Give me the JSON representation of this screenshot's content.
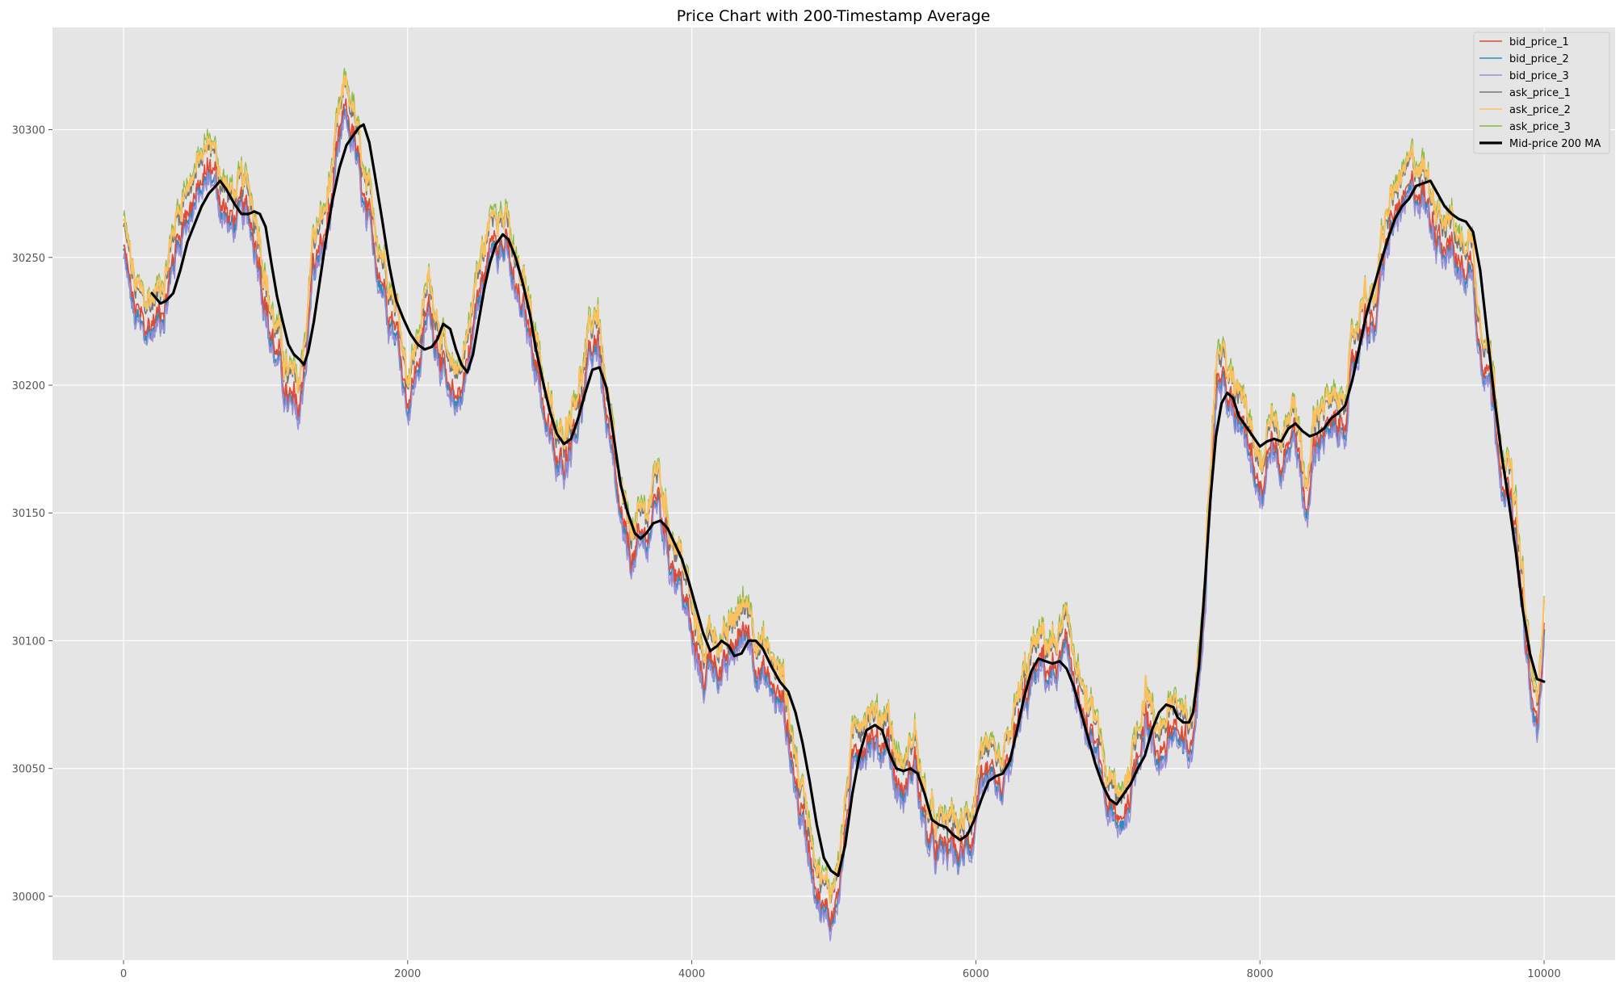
{
  "chart_data": {
    "type": "line",
    "title": "Price Chart with 200-Timestamp Average",
    "xlabel": "",
    "ylabel": "",
    "xlim": [
      -500,
      10500
    ],
    "ylim": [
      29975,
      30340
    ],
    "x_ticks": [
      0,
      2000,
      4000,
      6000,
      8000,
      10000
    ],
    "y_ticks": [
      30000,
      30050,
      30100,
      30150,
      30200,
      30250,
      30300
    ],
    "grid": true,
    "legend_position": "top-right",
    "background": "#e5e5e5",
    "price_path": [
      [
        0,
        30258
      ],
      [
        80,
        30232
      ],
      [
        150,
        30226
      ],
      [
        230,
        30230
      ],
      [
        300,
        30240
      ],
      [
        380,
        30262
      ],
      [
        450,
        30275
      ],
      [
        530,
        30280
      ],
      [
        620,
        30290
      ],
      [
        680,
        30278
      ],
      [
        750,
        30268
      ],
      [
        840,
        30272
      ],
      [
        900,
        30268
      ],
      [
        960,
        30255
      ],
      [
        1030,
        30226
      ],
      [
        1100,
        30212
      ],
      [
        1150,
        30200
      ],
      [
        1230,
        30192
      ],
      [
        1280,
        30215
      ],
      [
        1330,
        30250
      ],
      [
        1420,
        30262
      ],
      [
        1500,
        30290
      ],
      [
        1560,
        30310
      ],
      [
        1620,
        30302
      ],
      [
        1700,
        30270
      ],
      [
        1780,
        30255
      ],
      [
        1850,
        30242
      ],
      [
        1920,
        30228
      ],
      [
        2000,
        30200
      ],
      [
        2060,
        30210
      ],
      [
        2150,
        30235
      ],
      [
        2230,
        30220
      ],
      [
        2300,
        30195
      ],
      [
        2360,
        30200
      ],
      [
        2420,
        30215
      ],
      [
        2480,
        30235
      ],
      [
        2550,
        30250
      ],
      [
        2620,
        30268
      ],
      [
        2700,
        30258
      ],
      [
        2750,
        30242
      ],
      [
        2830,
        30230
      ],
      [
        2900,
        30218
      ],
      [
        2950,
        30200
      ],
      [
        3000,
        30185
      ],
      [
        3060,
        30170
      ],
      [
        3110,
        30178
      ],
      [
        3160,
        30190
      ],
      [
        3230,
        30200
      ],
      [
        3300,
        30218
      ],
      [
        3340,
        30225
      ],
      [
        3400,
        30190
      ],
      [
        3460,
        30165
      ],
      [
        3530,
        30140
      ],
      [
        3600,
        30138
      ],
      [
        3680,
        30145
      ],
      [
        3760,
        30162
      ],
      [
        3840,
        30140
      ],
      [
        3900,
        30132
      ],
      [
        3960,
        30120
      ],
      [
        4020,
        30100
      ],
      [
        4080,
        30090
      ],
      [
        4140,
        30100
      ],
      [
        4230,
        30092
      ],
      [
        4320,
        30105
      ],
      [
        4400,
        30110
      ],
      [
        4460,
        30098
      ],
      [
        4520,
        30090
      ],
      [
        4580,
        30085
      ],
      [
        4650,
        30078
      ],
      [
        4700,
        30060
      ],
      [
        4760,
        30040
      ],
      [
        4830,
        30025
      ],
      [
        4900,
        30005
      ],
      [
        4960,
        29995
      ],
      [
        5000,
        30000
      ],
      [
        5060,
        30020
      ],
      [
        5120,
        30050
      ],
      [
        5180,
        30065
      ],
      [
        5250,
        30070
      ],
      [
        5320,
        30062
      ],
      [
        5380,
        30070
      ],
      [
        5430,
        30050
      ],
      [
        5500,
        30045
      ],
      [
        5570,
        30060
      ],
      [
        5630,
        30035
      ],
      [
        5680,
        30025
      ],
      [
        5750,
        30020
      ],
      [
        5830,
        30025
      ],
      [
        5900,
        30020
      ],
      [
        5970,
        30028
      ],
      [
        6040,
        30055
      ],
      [
        6100,
        30045
      ],
      [
        6180,
        30040
      ],
      [
        6250,
        30060
      ],
      [
        6320,
        30075
      ],
      [
        6400,
        30090
      ],
      [
        6470,
        30095
      ],
      [
        6550,
        30092
      ],
      [
        6620,
        30100
      ],
      [
        6700,
        30090
      ],
      [
        6770,
        30070
      ],
      [
        6850,
        30060
      ],
      [
        6920,
        30042
      ],
      [
        7000,
        30030
      ],
      [
        7080,
        30045
      ],
      [
        7140,
        30060
      ],
      [
        7200,
        30080
      ],
      [
        7260,
        30060
      ],
      [
        7340,
        30065
      ],
      [
        7400,
        30072
      ],
      [
        7460,
        30060
      ],
      [
        7520,
        30062
      ],
      [
        7580,
        30095
      ],
      [
        7640,
        30160
      ],
      [
        7700,
        30210
      ],
      [
        7760,
        30205
      ],
      [
        7820,
        30190
      ],
      [
        7880,
        30195
      ],
      [
        7950,
        30180
      ],
      [
        8020,
        30165
      ],
      [
        8080,
        30185
      ],
      [
        8150,
        30170
      ],
      [
        8220,
        30190
      ],
      [
        8290,
        30175
      ],
      [
        8330,
        30150
      ],
      [
        8380,
        30180
      ],
      [
        8440,
        30190
      ],
      [
        8500,
        30185
      ],
      [
        8560,
        30185
      ],
      [
        8620,
        30200
      ],
      [
        8680,
        30215
      ],
      [
        8740,
        30235
      ],
      [
        8800,
        30225
      ],
      [
        8850,
        30245
      ],
      [
        8900,
        30262
      ],
      [
        8960,
        30272
      ],
      [
        9020,
        30275
      ],
      [
        9080,
        30280
      ],
      [
        9140,
        30282
      ],
      [
        9200,
        30270
      ],
      [
        9250,
        30268
      ],
      [
        9300,
        30262
      ],
      [
        9350,
        30260
      ],
      [
        9400,
        30250
      ],
      [
        9450,
        30252
      ],
      [
        9500,
        30250
      ],
      [
        9540,
        30225
      ],
      [
        9600,
        30215
      ],
      [
        9650,
        30195
      ],
      [
        9700,
        30175
      ],
      [
        9760,
        30160
      ],
      [
        9800,
        30145
      ],
      [
        9840,
        30120
      ],
      [
        9880,
        30100
      ],
      [
        9920,
        30075
      ],
      [
        9960,
        30072
      ],
      [
        10000,
        30108
      ]
    ],
    "ma_path": [
      [
        200,
        30236
      ],
      [
        260,
        30232
      ],
      [
        300,
        30233
      ],
      [
        350,
        30236
      ],
      [
        400,
        30245
      ],
      [
        450,
        30256
      ],
      [
        500,
        30263
      ],
      [
        550,
        30270
      ],
      [
        600,
        30275
      ],
      [
        650,
        30278
      ],
      [
        680,
        30280
      ],
      [
        720,
        30277
      ],
      [
        780,
        30271
      ],
      [
        830,
        30267
      ],
      [
        880,
        30267
      ],
      [
        920,
        30268
      ],
      [
        960,
        30267
      ],
      [
        1000,
        30262
      ],
      [
        1040,
        30248
      ],
      [
        1080,
        30235
      ],
      [
        1120,
        30225
      ],
      [
        1160,
        30216
      ],
      [
        1200,
        30212
      ],
      [
        1240,
        30210
      ],
      [
        1270,
        30208
      ],
      [
        1300,
        30213
      ],
      [
        1340,
        30225
      ],
      [
        1380,
        30240
      ],
      [
        1420,
        30255
      ],
      [
        1470,
        30272
      ],
      [
        1520,
        30285
      ],
      [
        1570,
        30294
      ],
      [
        1620,
        30298
      ],
      [
        1660,
        30301
      ],
      [
        1690,
        30302
      ],
      [
        1730,
        30295
      ],
      [
        1770,
        30282
      ],
      [
        1820,
        30265
      ],
      [
        1870,
        30247
      ],
      [
        1920,
        30233
      ],
      [
        1970,
        30226
      ],
      [
        2020,
        30220
      ],
      [
        2070,
        30216
      ],
      [
        2120,
        30214
      ],
      [
        2170,
        30215
      ],
      [
        2210,
        30218
      ],
      [
        2250,
        30224
      ],
      [
        2300,
        30222
      ],
      [
        2340,
        30214
      ],
      [
        2380,
        30208
      ],
      [
        2420,
        30205
      ],
      [
        2460,
        30212
      ],
      [
        2500,
        30225
      ],
      [
        2540,
        30238
      ],
      [
        2580,
        30248
      ],
      [
        2620,
        30255
      ],
      [
        2670,
        30259
      ],
      [
        2710,
        30257
      ],
      [
        2760,
        30250
      ],
      [
        2810,
        30240
      ],
      [
        2860,
        30228
      ],
      [
        2900,
        30215
      ],
      [
        2950,
        30202
      ],
      [
        3000,
        30190
      ],
      [
        3050,
        30181
      ],
      [
        3100,
        30177
      ],
      [
        3150,
        30179
      ],
      [
        3200,
        30187
      ],
      [
        3250,
        30197
      ],
      [
        3300,
        30206
      ],
      [
        3350,
        30207
      ],
      [
        3400,
        30199
      ],
      [
        3450,
        30180
      ],
      [
        3500,
        30161
      ],
      [
        3550,
        30150
      ],
      [
        3600,
        30142
      ],
      [
        3640,
        30140
      ],
      [
        3680,
        30142
      ],
      [
        3730,
        30146
      ],
      [
        3780,
        30147
      ],
      [
        3830,
        30144
      ],
      [
        3880,
        30138
      ],
      [
        3930,
        30132
      ],
      [
        3980,
        30123
      ],
      [
        4030,
        30113
      ],
      [
        4080,
        30103
      ],
      [
        4130,
        30096
      ],
      [
        4180,
        30098
      ],
      [
        4210,
        30100
      ],
      [
        4260,
        30098
      ],
      [
        4300,
        30094
      ],
      [
        4350,
        30095
      ],
      [
        4400,
        30100
      ],
      [
        4450,
        30100
      ],
      [
        4500,
        30097
      ],
      [
        4560,
        30090
      ],
      [
        4620,
        30084
      ],
      [
        4680,
        30080
      ],
      [
        4730,
        30072
      ],
      [
        4780,
        30060
      ],
      [
        4830,
        30045
      ],
      [
        4880,
        30028
      ],
      [
        4930,
        30015
      ],
      [
        4980,
        30010
      ],
      [
        5030,
        30008
      ],
      [
        5080,
        30020
      ],
      [
        5130,
        30040
      ],
      [
        5180,
        30055
      ],
      [
        5230,
        30065
      ],
      [
        5290,
        30067
      ],
      [
        5340,
        30065
      ],
      [
        5390,
        30056
      ],
      [
        5440,
        30050
      ],
      [
        5490,
        30049
      ],
      [
        5540,
        30050
      ],
      [
        5590,
        30048
      ],
      [
        5640,
        30040
      ],
      [
        5690,
        30030
      ],
      [
        5740,
        30028
      ],
      [
        5790,
        30027
      ],
      [
        5840,
        30024
      ],
      [
        5890,
        30022
      ],
      [
        5940,
        30024
      ],
      [
        5990,
        30030
      ],
      [
        6040,
        30038
      ],
      [
        6090,
        30045
      ],
      [
        6140,
        30047
      ],
      [
        6190,
        30048
      ],
      [
        6240,
        30053
      ],
      [
        6290,
        30065
      ],
      [
        6340,
        30078
      ],
      [
        6390,
        30088
      ],
      [
        6440,
        30093
      ],
      [
        6490,
        30092
      ],
      [
        6540,
        30091
      ],
      [
        6590,
        30092
      ],
      [
        6640,
        30089
      ],
      [
        6690,
        30082
      ],
      [
        6740,
        30072
      ],
      [
        6790,
        30062
      ],
      [
        6840,
        30052
      ],
      [
        6890,
        30044
      ],
      [
        6940,
        30038
      ],
      [
        6990,
        30036
      ],
      [
        7040,
        30040
      ],
      [
        7090,
        30044
      ],
      [
        7140,
        30050
      ],
      [
        7190,
        30055
      ],
      [
        7240,
        30065
      ],
      [
        7290,
        30072
      ],
      [
        7340,
        30075
      ],
      [
        7390,
        30074
      ],
      [
        7420,
        30070
      ],
      [
        7460,
        30068
      ],
      [
        7500,
        30068
      ],
      [
        7530,
        30072
      ],
      [
        7570,
        30090
      ],
      [
        7610,
        30120
      ],
      [
        7650,
        30155
      ],
      [
        7690,
        30180
      ],
      [
        7730,
        30193
      ],
      [
        7770,
        30197
      ],
      [
        7810,
        30195
      ],
      [
        7850,
        30188
      ],
      [
        7900,
        30184
      ],
      [
        7950,
        30180
      ],
      [
        8000,
        30176
      ],
      [
        8050,
        30178
      ],
      [
        8100,
        30179
      ],
      [
        8150,
        30178
      ],
      [
        8200,
        30183
      ],
      [
        8250,
        30185
      ],
      [
        8300,
        30182
      ],
      [
        8350,
        30180
      ],
      [
        8400,
        30181
      ],
      [
        8450,
        30183
      ],
      [
        8500,
        30187
      ],
      [
        8550,
        30189
      ],
      [
        8600,
        30192
      ],
      [
        8650,
        30202
      ],
      [
        8700,
        30215
      ],
      [
        8750,
        30228
      ],
      [
        8800,
        30238
      ],
      [
        8850,
        30248
      ],
      [
        8900,
        30257
      ],
      [
        8950,
        30265
      ],
      [
        9000,
        30270
      ],
      [
        9050,
        30273
      ],
      [
        9100,
        30278
      ],
      [
        9150,
        30279
      ],
      [
        9200,
        30280
      ],
      [
        9250,
        30275
      ],
      [
        9300,
        30270
      ],
      [
        9350,
        30267
      ],
      [
        9400,
        30265
      ],
      [
        9450,
        30264
      ],
      [
        9500,
        30260
      ],
      [
        9550,
        30245
      ],
      [
        9600,
        30220
      ],
      [
        9650,
        30195
      ],
      [
        9700,
        30173
      ],
      [
        9750,
        30155
      ],
      [
        9800,
        30135
      ],
      [
        9850,
        30112
      ],
      [
        9900,
        30095
      ],
      [
        9950,
        30085
      ],
      [
        10000,
        30084
      ]
    ],
    "series": [
      {
        "name": "bid_price_1",
        "color": "#E24A33",
        "offset": -4,
        "width": 1.6
      },
      {
        "name": "bid_price_2",
        "color": "#348ABD",
        "offset": -7,
        "width": 2.4
      },
      {
        "name": "bid_price_3",
        "color": "#988ED5",
        "offset": -9,
        "width": 1.4
      },
      {
        "name": "ask_price_1",
        "color": "#777777",
        "offset": 4,
        "width": 1.6
      },
      {
        "name": "ask_price_2",
        "color": "#FBC15E",
        "offset": 6,
        "width": 2.2
      },
      {
        "name": "ask_price_3",
        "color": "#8EBA42",
        "offset": 8,
        "width": 1.2
      },
      {
        "name": "Mid-price 200 MA",
        "color": "#000000",
        "offset": 0,
        "width": 3.2
      }
    ]
  }
}
